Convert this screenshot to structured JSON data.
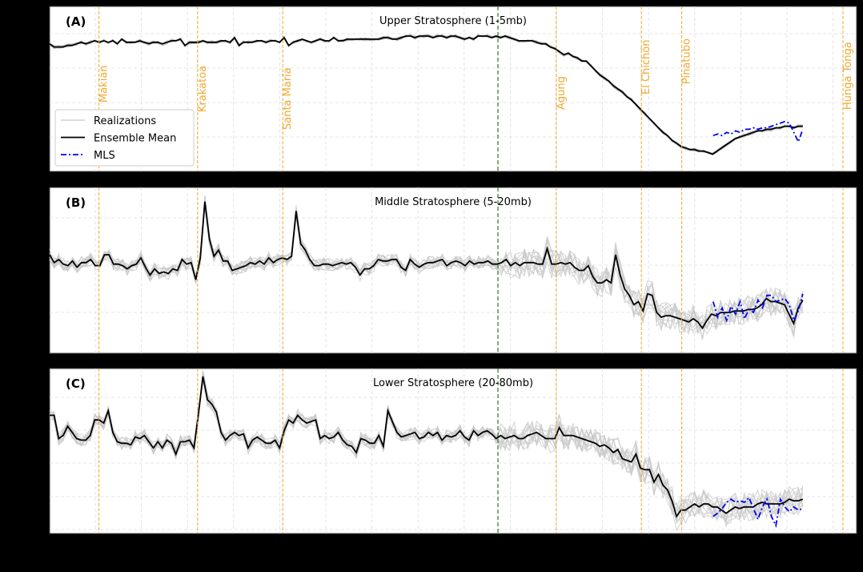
{
  "figure": {
    "background": "#000000",
    "plot_background": "#ffffff",
    "colors": {
      "realizations": "#c8c8c8",
      "ensemble_mean": "#000000",
      "mls": "#0000ee",
      "volcano_line": "#f0a830",
      "reference_line": "#2a7a1a",
      "grid": "#dddddd"
    }
  },
  "legend": {
    "items": [
      {
        "label": "Realizations",
        "style": "solid-lightgray"
      },
      {
        "label": "Ensemble Mean",
        "style": "solid-black"
      },
      {
        "label": "MLS",
        "style": "dashdot-blue"
      }
    ]
  },
  "chart_data": [
    {
      "type": "line",
      "panel_label": "(A)",
      "title": "Upper Stratosphere (1-5mb)",
      "xlabel": "",
      "ylabel": "",
      "grid": true,
      "legend_position": "lower left",
      "note": "Axis tick labels not visible (black on black). Values in normalized units 0-100 (top=100).",
      "series": [
        {
          "name": "Ensemble Mean",
          "x_range": [
            0,
            168
          ],
          "values": [
            79,
            77,
            77,
            77,
            78,
            78,
            79,
            80,
            79,
            80,
            81,
            80,
            81,
            80,
            81,
            79,
            82,
            80,
            80,
            80,
            81,
            80,
            79,
            80,
            80,
            79,
            80,
            81,
            81,
            82,
            78,
            80,
            80,
            80,
            81,
            80,
            80,
            80,
            81,
            81,
            80,
            83,
            78,
            80,
            80,
            80,
            81,
            81,
            80,
            81,
            81,
            80,
            83,
            78,
            80,
            81,
            82,
            81,
            80,
            81,
            82,
            81,
            81,
            83,
            81,
            81,
            82,
            82,
            82,
            82,
            82,
            82,
            82,
            82,
            83,
            83,
            82,
            82,
            83,
            84,
            84,
            83,
            84,
            84,
            84,
            83,
            84,
            84,
            83,
            84,
            84,
            83,
            82,
            83,
            82,
            84,
            84,
            84,
            83,
            84,
            83,
            84,
            83,
            82,
            81,
            81,
            81,
            81,
            80,
            79,
            79,
            77,
            76,
            74,
            72,
            73,
            71,
            70,
            68,
            68,
            65,
            62,
            59,
            57,
            55,
            52,
            50,
            48,
            45,
            43,
            40,
            37,
            34,
            31,
            28,
            25,
            22,
            20,
            17,
            15,
            13,
            12,
            11,
            11,
            10,
            10,
            9,
            8,
            10,
            12,
            14,
            16,
            18,
            19,
            20,
            21,
            22,
            23,
            23,
            24,
            24,
            25,
            25,
            26,
            26,
            25,
            26,
            26
          ]
        },
        {
          "name": "MLS",
          "x_range": [
            148,
            168
          ],
          "values": [
            20,
            21,
            20,
            22,
            21,
            23,
            22,
            24,
            24,
            25,
            24,
            25,
            25,
            26,
            27,
            28,
            29,
            28,
            22,
            16,
            24
          ]
        }
      ],
      "volcanoes": [
        {
          "name": "Makian",
          "x": 11
        },
        {
          "name": "Krakatoa",
          "x": 33
        },
        {
          "name": "Santa María",
          "x": 52
        },
        {
          "name": "Agung",
          "x": 113
        },
        {
          "name": "El Chichón",
          "x": 132
        },
        {
          "name": "Pinatubo",
          "x": 141
        },
        {
          "name": "Hunga Tonga",
          "x": 172
        }
      ],
      "reference_line_x": 100
    },
    {
      "type": "line",
      "panel_label": "(B)",
      "title": "Middle Stratosphere (5-20mb)",
      "xlabel": "",
      "ylabel": "",
      "grid": true,
      "series": [
        {
          "name": "Ensemble Mean",
          "x_range": [
            0,
            168
          ],
          "values": [
            60,
            55,
            57,
            54,
            53,
            56,
            52,
            55,
            55,
            57,
            53,
            53,
            60,
            60,
            54,
            54,
            53,
            51,
            53,
            54,
            58,
            52,
            47,
            51,
            48,
            49,
            48,
            51,
            50,
            57,
            54,
            55,
            44,
            58,
            94,
            70,
            59,
            63,
            56,
            56,
            50,
            51,
            52,
            53,
            55,
            54,
            56,
            54,
            58,
            55,
            57,
            58,
            57,
            59,
            88,
            67,
            63,
            57,
            53,
            53,
            54,
            54,
            53,
            54,
            55,
            54,
            55,
            52,
            47,
            51,
            51,
            53,
            57,
            56,
            56,
            57,
            57,
            52,
            50,
            57,
            54,
            52,
            54,
            55,
            55,
            56,
            57,
            53,
            55,
            56,
            55,
            53,
            56,
            54,
            55,
            55,
            56,
            54,
            54,
            55,
            57,
            53,
            55,
            53,
            55,
            55,
            55,
            54,
            54,
            64,
            54,
            54,
            55,
            54,
            55,
            52,
            50,
            50,
            53,
            46,
            42,
            42,
            44,
            42,
            60,
            47,
            38,
            34,
            28,
            30,
            24,
            35,
            34,
            23,
            20,
            21,
            21,
            20,
            19,
            18,
            17,
            19,
            17,
            13,
            18,
            22,
            21,
            23,
            23,
            23,
            24,
            24,
            24,
            25,
            25,
            26,
            28,
            32,
            30,
            30,
            29,
            28,
            22,
            16,
            26,
            31
          ],
          "tail_values_note": "MLS overlaps final segment"
        },
        {
          "name": "MLS",
          "x_range": [
            148,
            168
          ],
          "values": [
            30,
            20,
            26,
            18,
            27,
            22,
            30,
            19,
            25,
            23,
            31,
            26,
            34,
            34,
            30,
            31,
            32,
            28,
            18,
            24,
            35
          ]
        }
      ],
      "volcanoes": [
        {
          "name": "Makian",
          "x": 11
        },
        {
          "name": "Krakatoa",
          "x": 33
        },
        {
          "name": "Santa María",
          "x": 52
        },
        {
          "name": "Agung",
          "x": 113
        },
        {
          "name": "El Chichón",
          "x": 132
        },
        {
          "name": "Pinatubo",
          "x": 141
        },
        {
          "name": "Hunga Tonga",
          "x": 172
        }
      ],
      "reference_line_x": 100
    },
    {
      "type": "line",
      "panel_label": "(C)",
      "title": "Lower Stratosphere (20-80mb)",
      "xlabel": "",
      "ylabel": "",
      "grid": true,
      "series": [
        {
          "name": "Ensemble Mean",
          "x_range": [
            0,
            168
          ],
          "values": [
            73,
            73,
            58,
            60,
            66,
            62,
            58,
            57,
            57,
            60,
            70,
            70,
            68,
            76,
            62,
            56,
            55,
            55,
            54,
            59,
            58,
            60,
            56,
            52,
            56,
            52,
            57,
            55,
            48,
            56,
            56,
            57,
            52,
            74,
            98,
            83,
            80,
            75,
            62,
            57,
            60,
            62,
            60,
            61,
            52,
            57,
            59,
            57,
            55,
            55,
            57,
            52,
            63,
            70,
            68,
            73,
            70,
            68,
            69,
            70,
            58,
            60,
            58,
            59,
            62,
            57,
            54,
            53,
            49,
            58,
            57,
            55,
            55,
            60,
            53,
            76,
            69,
            62,
            59,
            60,
            61,
            62,
            58,
            59,
            62,
            60,
            62,
            57,
            60,
            59,
            60,
            63,
            59,
            57,
            63,
            60,
            62,
            63,
            61,
            58,
            60,
            58,
            59,
            60,
            58,
            58,
            60,
            61,
            62,
            60,
            58,
            58,
            58,
            65,
            60,
            60,
            60,
            59,
            58,
            57,
            56,
            55,
            53,
            54,
            52,
            49,
            51,
            45,
            44,
            43,
            48,
            39,
            38,
            38,
            30,
            35,
            28,
            25,
            18,
            8,
            12,
            12,
            14,
            16,
            14,
            16,
            16,
            14,
            14,
            12,
            10,
            12,
            14,
            13,
            14,
            14,
            14,
            16,
            17,
            16,
            16,
            16,
            16,
            17,
            19,
            18,
            18,
            19
          ]
        },
        {
          "name": "MLS",
          "x_range": [
            148,
            168
          ],
          "values": [
            8,
            10,
            13,
            17,
            19,
            17,
            18,
            17,
            20,
            13,
            6,
            14,
            19,
            8,
            2,
            19,
            14,
            11,
            14,
            12,
            13
          ]
        }
      ],
      "volcanoes": [
        {
          "name": "Makian",
          "x": 11
        },
        {
          "name": "Krakatoa",
          "x": 33
        },
        {
          "name": "Santa María",
          "x": 52
        },
        {
          "name": "Agung",
          "x": 113
        },
        {
          "name": "El Chichón",
          "x": 132
        },
        {
          "name": "Pinatubo",
          "x": 141
        },
        {
          "name": "Hunga Tonga",
          "x": 172
        }
      ],
      "reference_line_x": 100
    }
  ]
}
